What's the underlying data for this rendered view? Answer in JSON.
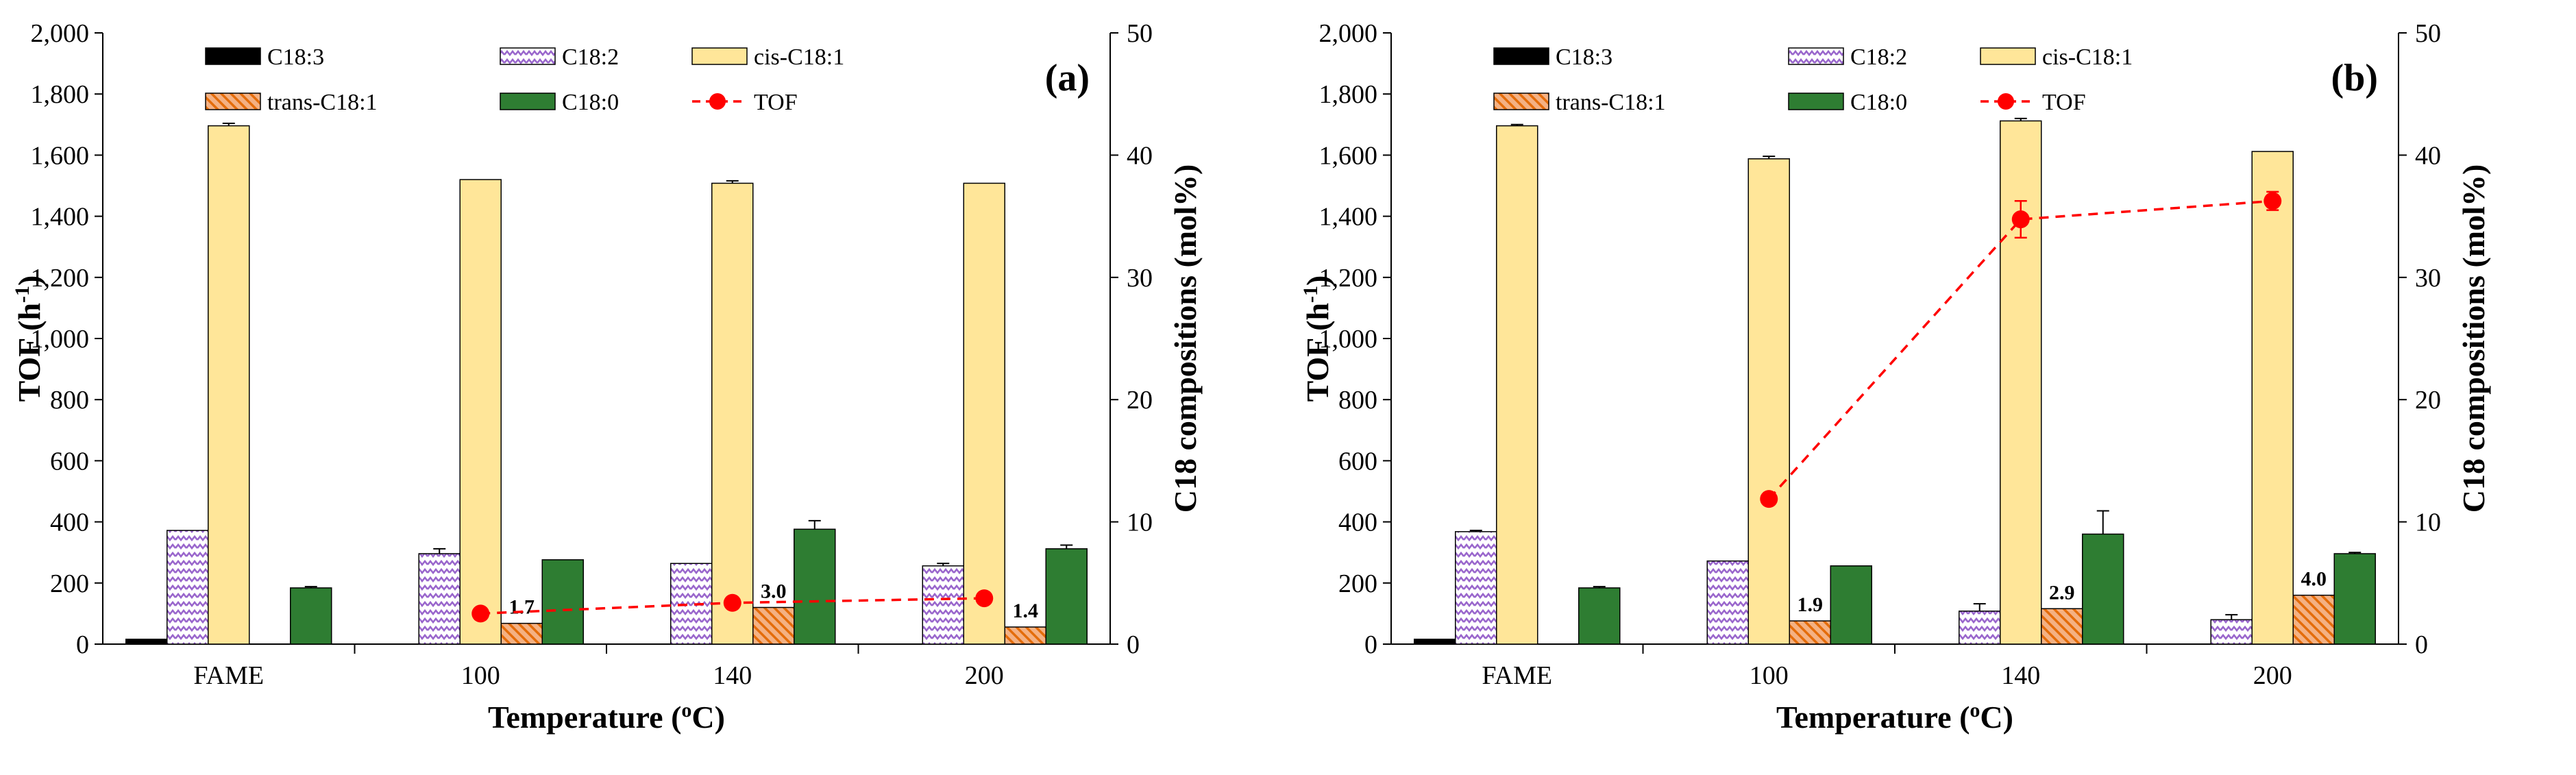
{
  "chart_data": [
    {
      "type": "bar",
      "panel_label": "(a)",
      "categories": [
        "FAME",
        "100",
        "140",
        "200"
      ],
      "xlabel": "Temperature (oC)",
      "xlabel_main": "Temperature (",
      "xlabel_sup": "o",
      "xlabel_end": "C)",
      "ylabel": "TOF (h-1)",
      "ylabel_main": "TOF (h",
      "ylabel_sup": "-1",
      "ylabel_end": ")",
      "ylim": [
        0,
        2000
      ],
      "yticks": [
        "0",
        "200",
        "400",
        "600",
        "800",
        "1,000",
        "1,200",
        "1,400",
        "1,600",
        "1,800",
        "2,000"
      ],
      "y2label": "C18 compositions (mol%)",
      "y2lim": [
        0,
        50
      ],
      "y2ticks": [
        "0",
        "10",
        "20",
        "30",
        "40",
        "50"
      ],
      "series": [
        {
          "name": "C18:3",
          "axis": "right",
          "values": [
            0.4,
            0,
            0,
            0
          ],
          "errors": [
            0,
            0,
            0,
            0
          ]
        },
        {
          "name": "C18:2",
          "axis": "right",
          "values": [
            9.3,
            7.4,
            6.6,
            6.4
          ],
          "errors": [
            0,
            0.4,
            0,
            0.2
          ]
        },
        {
          "name": "cis-C18:1",
          "axis": "right",
          "values": [
            42.4,
            38.0,
            37.7,
            37.7
          ],
          "errors": [
            0.2,
            0,
            0.2,
            0
          ]
        },
        {
          "name": "trans-C18:1",
          "axis": "right",
          "values": [
            0,
            1.7,
            3.0,
            1.4
          ],
          "errors": [
            0,
            0,
            0,
            0
          ],
          "labels": [
            "",
            "1.7",
            "3.0",
            "1.4"
          ]
        },
        {
          "name": "C18:0",
          "axis": "right",
          "values": [
            4.6,
            6.9,
            9.4,
            7.8
          ],
          "errors": [
            0.1,
            0,
            0.7,
            0.3
          ]
        },
        {
          "name": "TOF",
          "axis": "left",
          "type": "line",
          "values": [
            null,
            100,
            135,
            150
          ],
          "errors": [
            null,
            0,
            0,
            0
          ]
        }
      ]
    },
    {
      "type": "bar",
      "panel_label": "(b)",
      "categories": [
        "FAME",
        "100",
        "140",
        "200"
      ],
      "xlabel": "Temperature (oC)",
      "xlabel_main": "Temperature (",
      "xlabel_sup": "o",
      "xlabel_end": "C)",
      "ylabel": "TOF (h-1)",
      "ylabel_main": "TOF (h",
      "ylabel_sup": "-1",
      "ylabel_end": ")",
      "ylim": [
        0,
        2000
      ],
      "yticks": [
        "0",
        "200",
        "400",
        "600",
        "800",
        "1,000",
        "1,200",
        "1,400",
        "1,600",
        "1,800",
        "2,000"
      ],
      "y2label": "C18 compositions (mol%)",
      "y2lim": [
        0,
        50
      ],
      "y2ticks": [
        "0",
        "10",
        "20",
        "30",
        "40",
        "50"
      ],
      "series": [
        {
          "name": "C18:3",
          "axis": "right",
          "values": [
            0.4,
            0,
            0,
            0
          ],
          "errors": [
            0,
            0,
            0,
            0
          ]
        },
        {
          "name": "C18:2",
          "axis": "right",
          "values": [
            9.2,
            6.8,
            2.7,
            2.0
          ],
          "errors": [
            0.1,
            0,
            0.6,
            0.4
          ]
        },
        {
          "name": "cis-C18:1",
          "axis": "right",
          "values": [
            42.4,
            39.7,
            42.8,
            40.3
          ],
          "errors": [
            0.1,
            0.2,
            0.2,
            0
          ]
        },
        {
          "name": "trans-C18:1",
          "axis": "right",
          "values": [
            0,
            1.9,
            2.9,
            4.0
          ],
          "errors": [
            0,
            0,
            0,
            0
          ],
          "labels": [
            "",
            "1.9",
            "2.9",
            "4.0"
          ]
        },
        {
          "name": "C18:0",
          "axis": "right",
          "values": [
            4.6,
            6.4,
            9.0,
            7.4
          ],
          "errors": [
            0.1,
            0,
            1.9,
            0.1
          ]
        },
        {
          "name": "TOF",
          "axis": "left",
          "type": "line",
          "values": [
            null,
            475,
            1390,
            1450
          ],
          "errors": [
            null,
            0,
            60,
            30
          ]
        }
      ]
    }
  ],
  "colors": {
    "C18:3": "#000000",
    "C18:2": "#9966cc",
    "cis-C18:1": "#ffe699",
    "trans-C18:1": "#f4b183",
    "trans_stripe": "#e46c0a",
    "C18:0": "#2e7d32",
    "TOF": "#ff0000"
  }
}
